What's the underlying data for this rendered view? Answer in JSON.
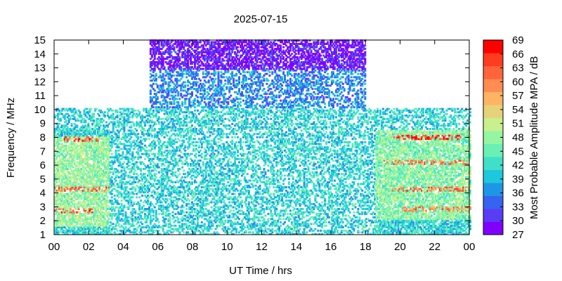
{
  "chart_data": {
    "type": "heatmap",
    "title": "2025-07-15",
    "xlabel": "UT Time / hrs",
    "ylabel": "Frequency / MHz",
    "colorbar_label": "Most Probable Amplitude MPA / dB",
    "xlim": [
      0,
      24
    ],
    "ylim": [
      1,
      15
    ],
    "x_ticks": [
      "00",
      "02",
      "04",
      "06",
      "08",
      "10",
      "12",
      "14",
      "16",
      "18",
      "20",
      "22",
      "00"
    ],
    "y_ticks": [
      "1",
      "2",
      "3",
      "4",
      "5",
      "6",
      "7",
      "8",
      "9",
      "10",
      "11",
      "12",
      "13",
      "14",
      "15"
    ],
    "colorbar_ticks": [
      "27",
      "30",
      "33",
      "36",
      "39",
      "42",
      "45",
      "48",
      "51",
      "54",
      "57",
      "60",
      "63",
      "66",
      "69"
    ],
    "colorbar_range": [
      27,
      69
    ],
    "colorbar_colors": [
      "#8000ff",
      "#5a3cf5",
      "#3464f0",
      "#1e96e6",
      "#1ec8dc",
      "#40e0c8",
      "#6af0b4",
      "#96f5a0",
      "#c8f08c",
      "#e6d278",
      "#ffb464",
      "#ff8c50",
      "#ff643c",
      "#ff3c1e",
      "#ff0000"
    ],
    "coverage": [
      {
        "x": [
          0,
          5.5
        ],
        "fmax": 10
      },
      {
        "x": [
          5.5,
          18
        ],
        "fmax": 15
      },
      {
        "x": [
          18,
          24
        ],
        "fmax": 10
      }
    ],
    "amplitude_regions": [
      {
        "x": [
          5.5,
          18
        ],
        "y": [
          12.8,
          15
        ],
        "mpa": 29
      },
      {
        "x": [
          5.5,
          18
        ],
        "y": [
          10,
          12.8
        ],
        "mpa": 36
      },
      {
        "x": [
          0,
          24
        ],
        "y": [
          1,
          10
        ],
        "mpa": 41
      },
      {
        "x": [
          0,
          3.2
        ],
        "y": [
          1.5,
          8
        ],
        "mpa": 48
      },
      {
        "x": [
          18.5,
          24
        ],
        "y": [
          2,
          8.5
        ],
        "mpa": 47
      }
    ],
    "hot_bands": [
      {
        "x": [
          0,
          2.2
        ],
        "y": 2.7,
        "mpa": 63
      },
      {
        "x": [
          0,
          3.2
        ],
        "y": 4.3,
        "mpa": 62
      },
      {
        "x": [
          0.5,
          2.5
        ],
        "y": 7.8,
        "mpa": 64
      },
      {
        "x": [
          19.5,
          23.5
        ],
        "y": 8.0,
        "mpa": 65
      },
      {
        "x": [
          19,
          24
        ],
        "y": 6.2,
        "mpa": 61
      },
      {
        "x": [
          19.5,
          24
        ],
        "y": 4.3,
        "mpa": 62
      },
      {
        "x": [
          20,
          24
        ],
        "y": 2.8,
        "mpa": 60
      }
    ]
  }
}
